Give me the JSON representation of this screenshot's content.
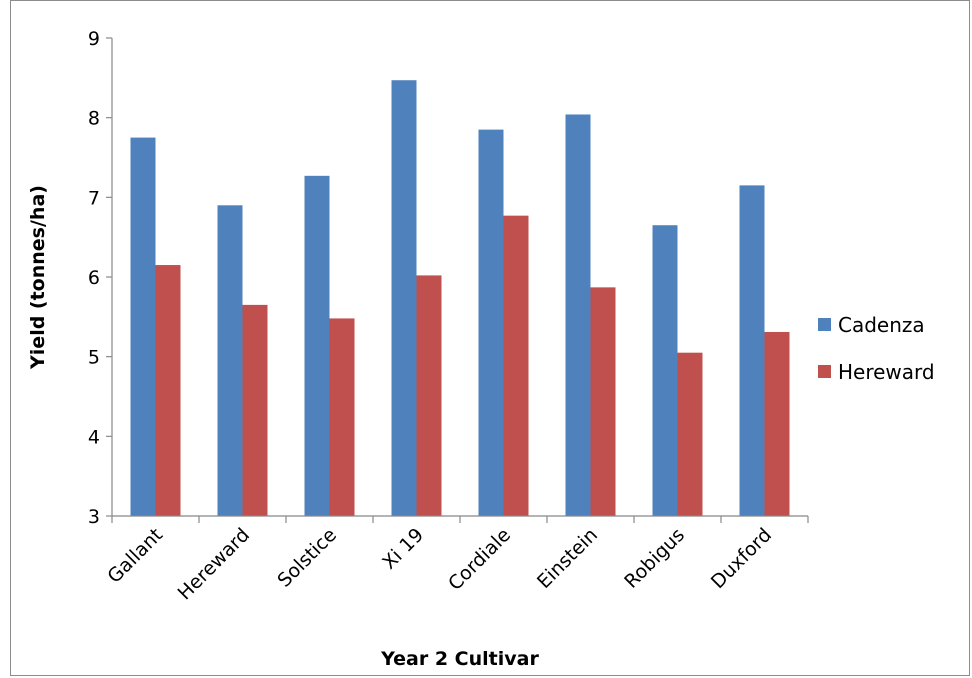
{
  "chart_data": {
    "type": "bar",
    "title": "",
    "xlabel": "Year 2 Cultivar",
    "ylabel": "Yield (tonnes/ha)",
    "ylim": [
      3,
      9
    ],
    "yticks": [
      "3",
      "4",
      "5",
      "6",
      "7",
      "8",
      "9"
    ],
    "categories": [
      "Gallant",
      "Hereward",
      "Solstice",
      "Xi 19",
      "Cordiale",
      "Einstein",
      "Robigus",
      "Duxford"
    ],
    "series": [
      {
        "name": "Cadenza",
        "color": "#4f81bd",
        "values": [
          7.75,
          6.9,
          7.27,
          8.47,
          7.85,
          8.04,
          6.65,
          7.15
        ]
      },
      {
        "name": "Hereward",
        "color": "#c0504d",
        "values": [
          6.15,
          5.65,
          5.48,
          6.02,
          6.77,
          5.87,
          5.05,
          5.31
        ]
      }
    ],
    "grid": false,
    "legend_position": "right"
  }
}
